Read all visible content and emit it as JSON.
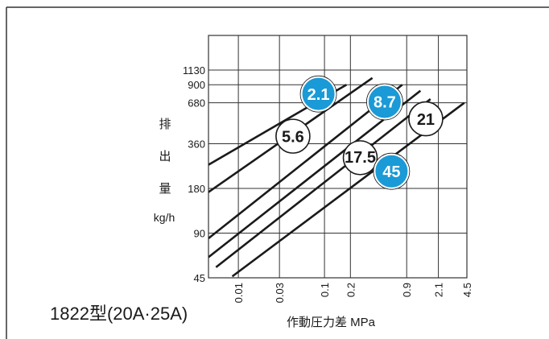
{
  "title": "1822型(20A·25A)",
  "chart_data": {
    "type": "line",
    "xlabel": "作動圧力差 MPa",
    "ylabel_chars": [
      "排",
      "出",
      "量"
    ],
    "yunit": "kg/h",
    "x_scale": "log",
    "y_scale": "log",
    "xlim": [
      0.0045,
      4.5
    ],
    "ylim": [
      45,
      1130
    ],
    "x_ticks": [
      {
        "value": 0.01,
        "label": "0.01"
      },
      {
        "value": 0.03,
        "label": "0.03"
      },
      {
        "value": 0.1,
        "label": "0.1"
      },
      {
        "value": 0.2,
        "label": "0.2"
      },
      {
        "value": 0.9,
        "label": "0.9"
      },
      {
        "value": 2.1,
        "label": "2.1"
      },
      {
        "value": 4.5,
        "label": "4.5"
      }
    ],
    "y_ticks": [
      {
        "value": 1130,
        "label": "1130"
      },
      {
        "value": 900,
        "label": "900"
      },
      {
        "value": 680,
        "label": "680"
      },
      {
        "value": 360,
        "label": "360"
      },
      {
        "value": 180,
        "label": "180"
      },
      {
        "value": 90,
        "label": "90"
      },
      {
        "value": 45,
        "label": "45"
      }
    ],
    "grid": true,
    "series": [
      {
        "name": "2.1",
        "style": "filled",
        "points": [
          {
            "x": 0.0045,
            "y": 260
          },
          {
            "x": 0.18,
            "y": 900
          }
        ]
      },
      {
        "name": "5.6",
        "style": "outline",
        "points": [
          {
            "x": 0.0045,
            "y": 170
          },
          {
            "x": 0.36,
            "y": 1000
          }
        ]
      },
      {
        "name": "8.7",
        "style": "filled",
        "points": [
          {
            "x": 0.0045,
            "y": 83
          },
          {
            "x": 0.8,
            "y": 900
          }
        ]
      },
      {
        "name": "17.5",
        "style": "outline",
        "points": [
          {
            "x": 0.0045,
            "y": 62
          },
          {
            "x": 1.3,
            "y": 820
          }
        ]
      },
      {
        "name": "21",
        "style": "outline",
        "points": [
          {
            "x": 0.0055,
            "y": 53
          },
          {
            "x": 1.7,
            "y": 720
          }
        ]
      },
      {
        "name": "45",
        "style": "filled",
        "points": [
          {
            "x": 0.0085,
            "y": 46
          },
          {
            "x": 4.2,
            "y": 680
          }
        ]
      }
    ],
    "badges": [
      {
        "label": "2.1",
        "style": "filled",
        "x": 0.085,
        "y": 780
      },
      {
        "label": "8.7",
        "style": "filled",
        "x": 0.5,
        "y": 690
      },
      {
        "label": "21",
        "style": "outline",
        "x": 1.5,
        "y": 530
      },
      {
        "label": "5.6",
        "style": "outline",
        "x": 0.043,
        "y": 405
      },
      {
        "label": "17.5",
        "style": "outline",
        "x": 0.26,
        "y": 290
      },
      {
        "label": "45",
        "style": "filled",
        "x": 0.6,
        "y": 235
      }
    ],
    "colors": {
      "badge_fill": "#1a9ad6",
      "line": "#1a1a1a",
      "grid": "#333333"
    }
  }
}
